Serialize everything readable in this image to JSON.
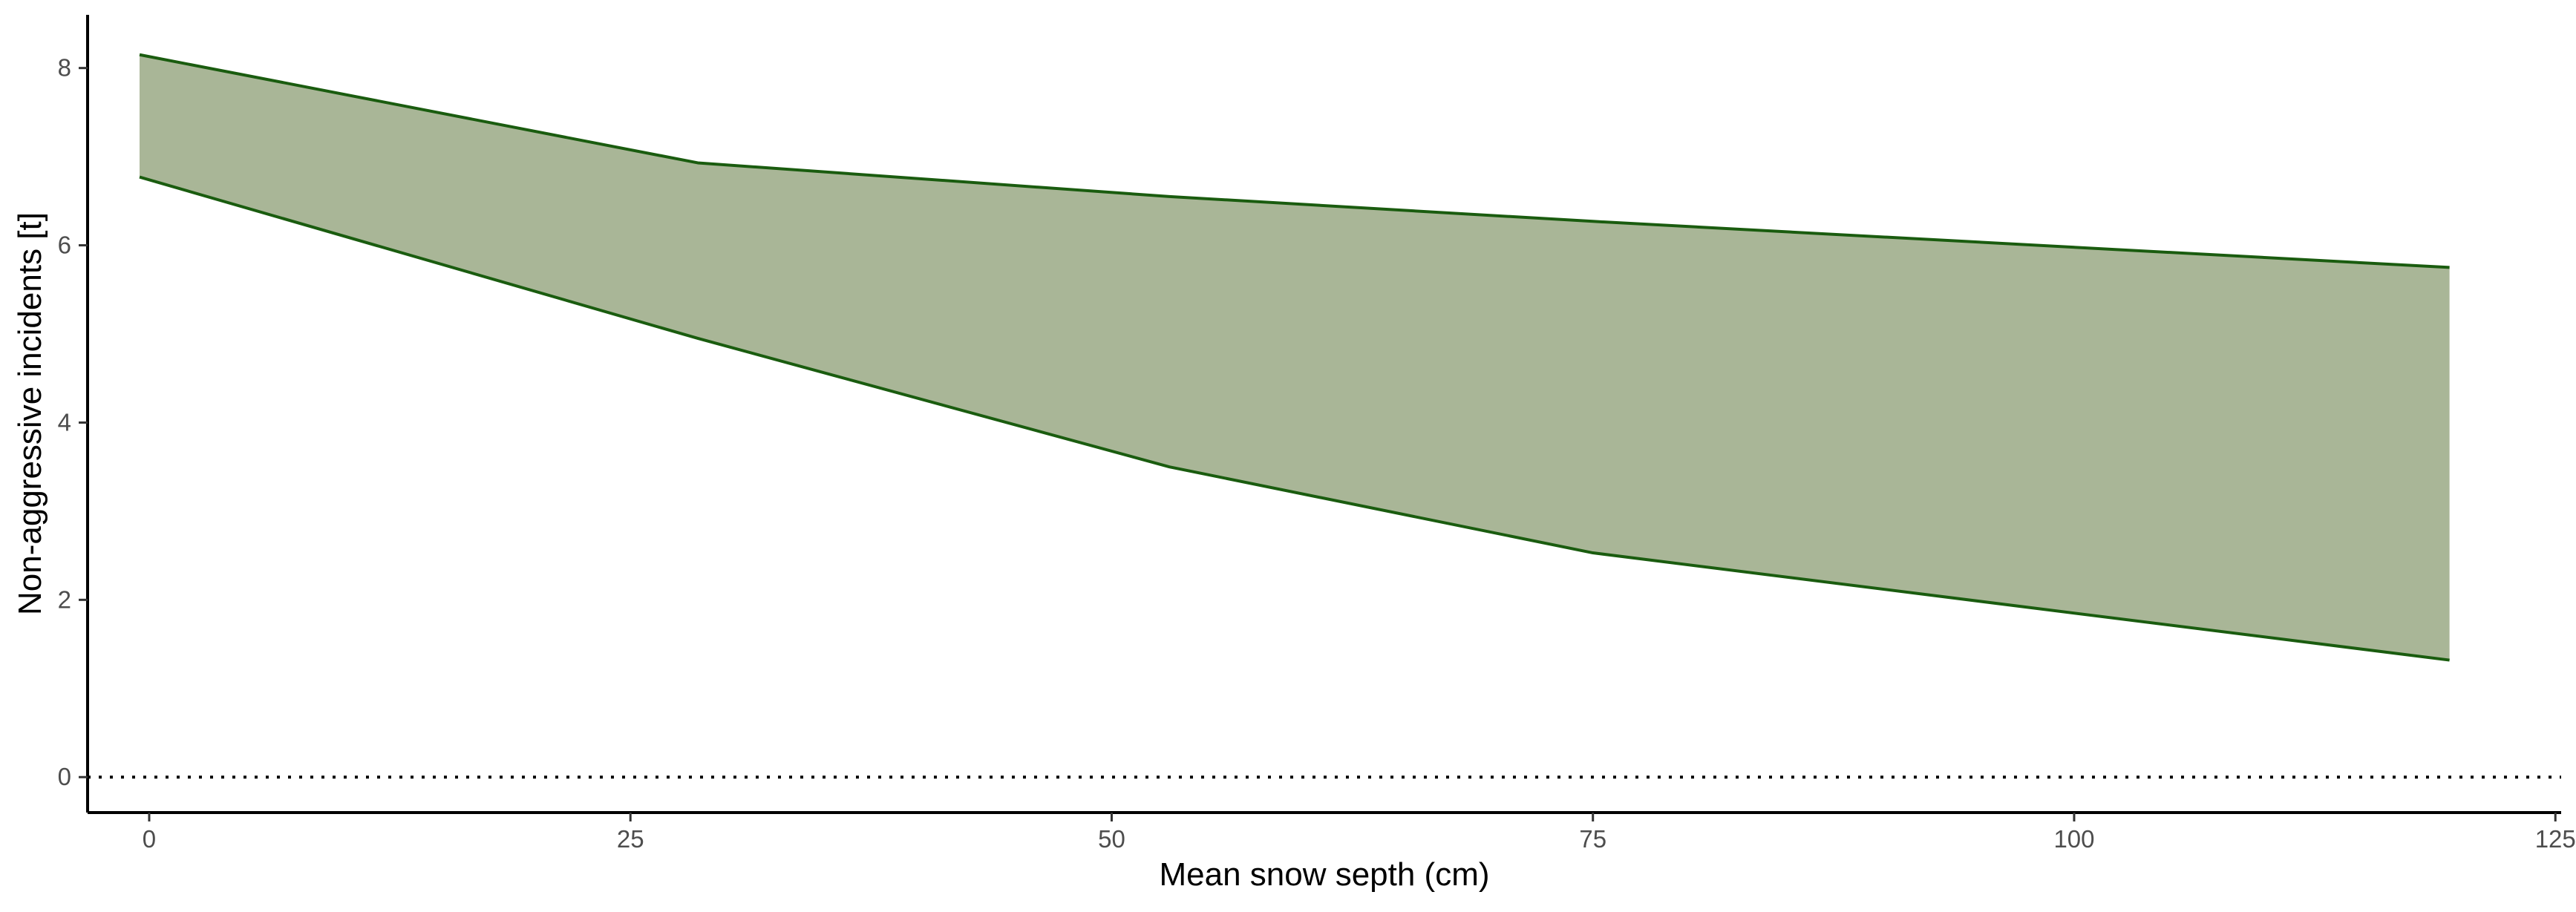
{
  "chart_data": {
    "type": "area",
    "xlabel": "Mean snow septh (cm)",
    "ylabel": "Non-aggressive incidents [t]",
    "xlim": [
      -3.2,
      125.3
    ],
    "ylim": [
      -0.4,
      8.6
    ],
    "x_ticks": [
      0,
      25,
      50,
      75,
      100,
      125
    ],
    "y_ticks": [
      0,
      2,
      4,
      6,
      8
    ],
    "reference_line": {
      "y": 0,
      "style": "dotted"
    },
    "band": {
      "x": [
        -0.5,
        28.5,
        53,
        75,
        119.5
      ],
      "upper": [
        8.15,
        6.93,
        6.55,
        6.27,
        5.75
      ],
      "lower": [
        6.77,
        4.95,
        3.5,
        2.53,
        1.32
      ],
      "fill_color": "#a9b697",
      "line_color": "#1a5c0f"
    },
    "grid": false,
    "legend": "none"
  }
}
